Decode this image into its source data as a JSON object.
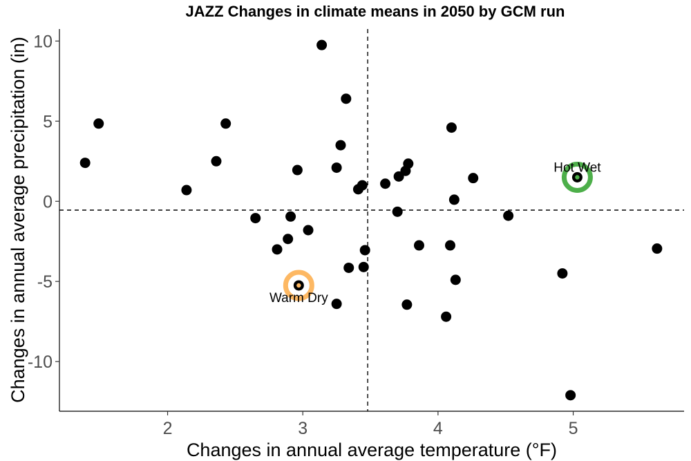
{
  "chart_data": {
    "type": "scatter",
    "title": "JAZZ Changes in climate means in 2050 by GCM run",
    "xlabel": "Changes in annual average temperature (°F)",
    "ylabel": "Changes in annual average precipitation (in)",
    "xlim": [
      1.2,
      5.82
    ],
    "ylim": [
      -13.1,
      10.75
    ],
    "x_ticks": [
      2,
      3,
      4,
      5
    ],
    "x_tick_labels": [
      "2",
      "3",
      "4",
      "5"
    ],
    "y_ticks": [
      10,
      5,
      0,
      -5,
      -10
    ],
    "y_tick_labels": [
      "10",
      "5",
      "0",
      "-5",
      "-10"
    ],
    "grid": false,
    "reference_lines": {
      "x": 3.48,
      "y": -0.55,
      "style": "dashed"
    },
    "point_color": "#000000",
    "points": [
      {
        "x": 1.39,
        "y": 2.4
      },
      {
        "x": 1.49,
        "y": 4.85
      },
      {
        "x": 2.14,
        "y": 0.7
      },
      {
        "x": 2.36,
        "y": 2.5
      },
      {
        "x": 2.43,
        "y": 4.85
      },
      {
        "x": 2.65,
        "y": -1.05
      },
      {
        "x": 2.81,
        "y": -3.0
      },
      {
        "x": 2.89,
        "y": -2.35
      },
      {
        "x": 2.91,
        "y": -0.95
      },
      {
        "x": 2.96,
        "y": 1.95
      },
      {
        "x": 2.97,
        "y": -5.25
      },
      {
        "x": 3.04,
        "y": -1.8
      },
      {
        "x": 3.14,
        "y": 9.75
      },
      {
        "x": 3.25,
        "y": 2.1
      },
      {
        "x": 3.25,
        "y": -6.4
      },
      {
        "x": 3.28,
        "y": 3.5
      },
      {
        "x": 3.32,
        "y": 6.4
      },
      {
        "x": 3.34,
        "y": -4.15
      },
      {
        "x": 3.41,
        "y": 0.75
      },
      {
        "x": 3.44,
        "y": 1.0
      },
      {
        "x": 3.45,
        "y": -4.1
      },
      {
        "x": 3.46,
        "y": -3.05
      },
      {
        "x": 3.61,
        "y": 1.1
      },
      {
        "x": 3.7,
        "y": -0.65
      },
      {
        "x": 3.71,
        "y": 1.55
      },
      {
        "x": 3.76,
        "y": 1.9
      },
      {
        "x": 3.77,
        "y": -6.45
      },
      {
        "x": 3.78,
        "y": 2.35
      },
      {
        "x": 3.86,
        "y": -2.75
      },
      {
        "x": 4.06,
        "y": -7.2
      },
      {
        "x": 4.09,
        "y": -2.75
      },
      {
        "x": 4.1,
        "y": 4.6
      },
      {
        "x": 4.12,
        "y": 0.1
      },
      {
        "x": 4.13,
        "y": -4.9
      },
      {
        "x": 4.26,
        "y": 1.45
      },
      {
        "x": 4.52,
        "y": -0.9
      },
      {
        "x": 4.92,
        "y": -4.5
      },
      {
        "x": 4.98,
        "y": -12.1
      },
      {
        "x": 5.03,
        "y": 1.5
      },
      {
        "x": 5.62,
        "y": -2.95
      }
    ],
    "highlights": [
      {
        "label": "Hot Wet",
        "x": 5.03,
        "y": 1.5,
        "color": "#4daf4a",
        "label_position": "above"
      },
      {
        "label": "Warm Dry",
        "x": 2.97,
        "y": -5.25,
        "color": "#fdb863",
        "label_position": "below"
      }
    ]
  }
}
